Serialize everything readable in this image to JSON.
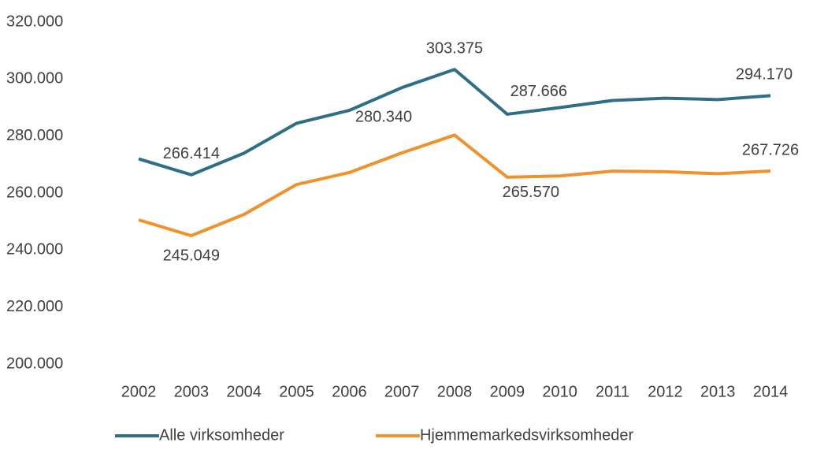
{
  "chart_data": {
    "type": "line",
    "categories": [
      "2002",
      "2003",
      "2004",
      "2005",
      "2006",
      "2007",
      "2008",
      "2009",
      "2010",
      "2011",
      "2012",
      "2013",
      "2014"
    ],
    "series": [
      {
        "name": "Alle virksomheder",
        "color": "#2e6f85",
        "values": [
          272000,
          266414,
          274000,
          284500,
          289000,
          297000,
          303375,
          287666,
          290000,
          292500,
          293300,
          292800,
          294170
        ],
        "value_labels": [
          null,
          "266.414",
          null,
          null,
          null,
          null,
          "303.375",
          "287.666",
          null,
          null,
          null,
          null,
          "294.170"
        ]
      },
      {
        "name": "Hjemmemarkedsvirksomheder",
        "color": "#f0922b",
        "values": [
          250600,
          245049,
          252500,
          263000,
          267200,
          274100,
          280340,
          265570,
          266000,
          267700,
          267500,
          266800,
          267726
        ],
        "value_labels": [
          null,
          "245.049",
          null,
          null,
          null,
          null,
          "280.340",
          "265.570",
          null,
          null,
          null,
          null,
          "267.726"
        ]
      }
    ],
    "ylim": [
      200000,
      320000
    ],
    "yticks": [
      {
        "value": 200000,
        "label": "200.000"
      },
      {
        "value": 220000,
        "label": "220.000"
      },
      {
        "value": 240000,
        "label": "240.000"
      },
      {
        "value": 260000,
        "label": "260.000"
      },
      {
        "value": 280000,
        "label": "280.000"
      },
      {
        "value": 300000,
        "label": "300.000"
      },
      {
        "value": 320000,
        "label": "320.000"
      }
    ],
    "grid": false,
    "legend": "bottom"
  }
}
